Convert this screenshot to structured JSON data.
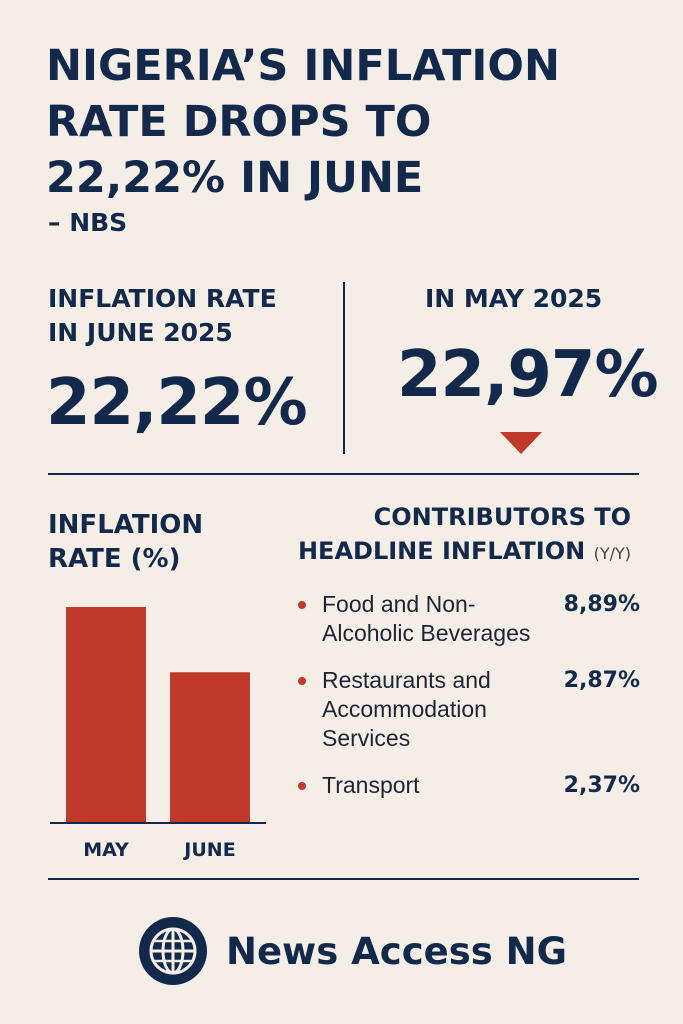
{
  "headline": {
    "line1": "NIGERIA’S INFLATION",
    "line2": "RATE DROPS TO",
    "line3": "22,22% IN JUNE",
    "source": "– NBS"
  },
  "current": {
    "label_line1": "INFLATION RATE",
    "label_line2": "IN JUNE 2025",
    "value": "22,22%"
  },
  "previous": {
    "label": "IN MAY 2025",
    "value": "22,97%",
    "trend_icon": "down-triangle-icon"
  },
  "chart_data": {
    "type": "bar",
    "title_line1": "INFLATION",
    "title_line2": "RATE (%)",
    "categories": [
      "MAY",
      "JUNE"
    ],
    "values": [
      22.97,
      22.22
    ],
    "color": "#c0392b"
  },
  "contributors": {
    "title_line1": "CONTRIBUTORS TO",
    "title_line2": "HEADLINE INFLATION",
    "unit": "(Y/Y)",
    "items": [
      {
        "name": "Food and Non-Alcoholic Beverages",
        "value": "8,89%"
      },
      {
        "name": "Restaurants and Accommodation Services",
        "value": "2,87%"
      },
      {
        "name": "Transport",
        "value": "2,37%"
      }
    ]
  },
  "brand": {
    "name": "News Access NG",
    "icon": "globe-icon"
  },
  "colors": {
    "background": "#f4eee7",
    "navy": "#13294b",
    "accent_red": "#c0392b"
  }
}
